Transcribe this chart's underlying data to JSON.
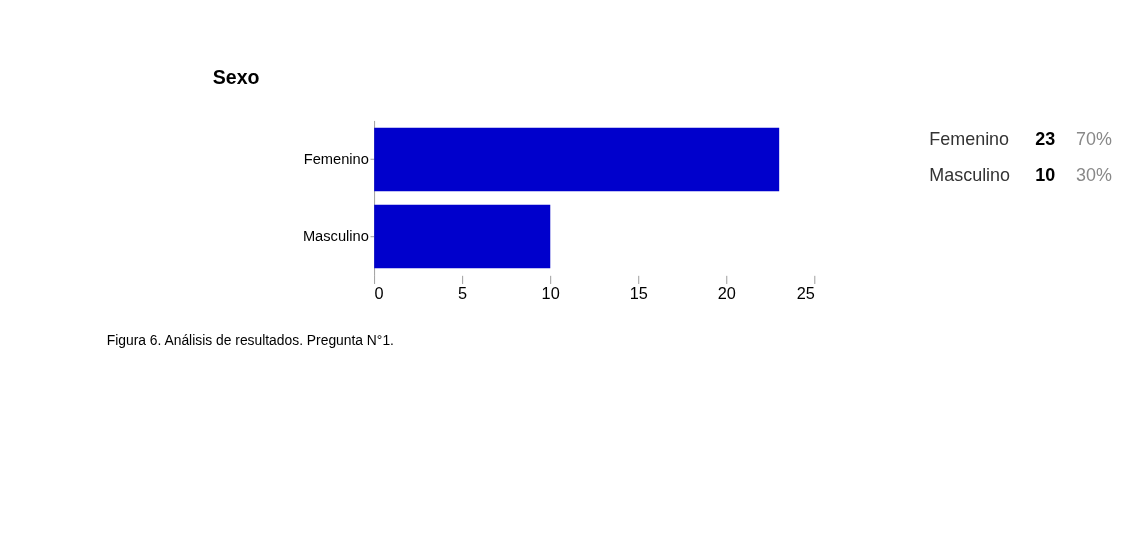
{
  "chart_data": {
    "type": "bar",
    "orientation": "horizontal",
    "title": "Sexo",
    "categories": [
      "Femenino",
      "Masculino"
    ],
    "values": [
      23,
      10
    ],
    "color": "#0000cc",
    "xlim": [
      0,
      25
    ],
    "xticks": [
      0,
      5,
      10,
      15,
      20,
      25
    ],
    "annotations": [
      "23",
      "70%",
      "10",
      "30%",
      "Figura 6. Análisis de resultados. Pregunta N°1."
    ]
  }
}
